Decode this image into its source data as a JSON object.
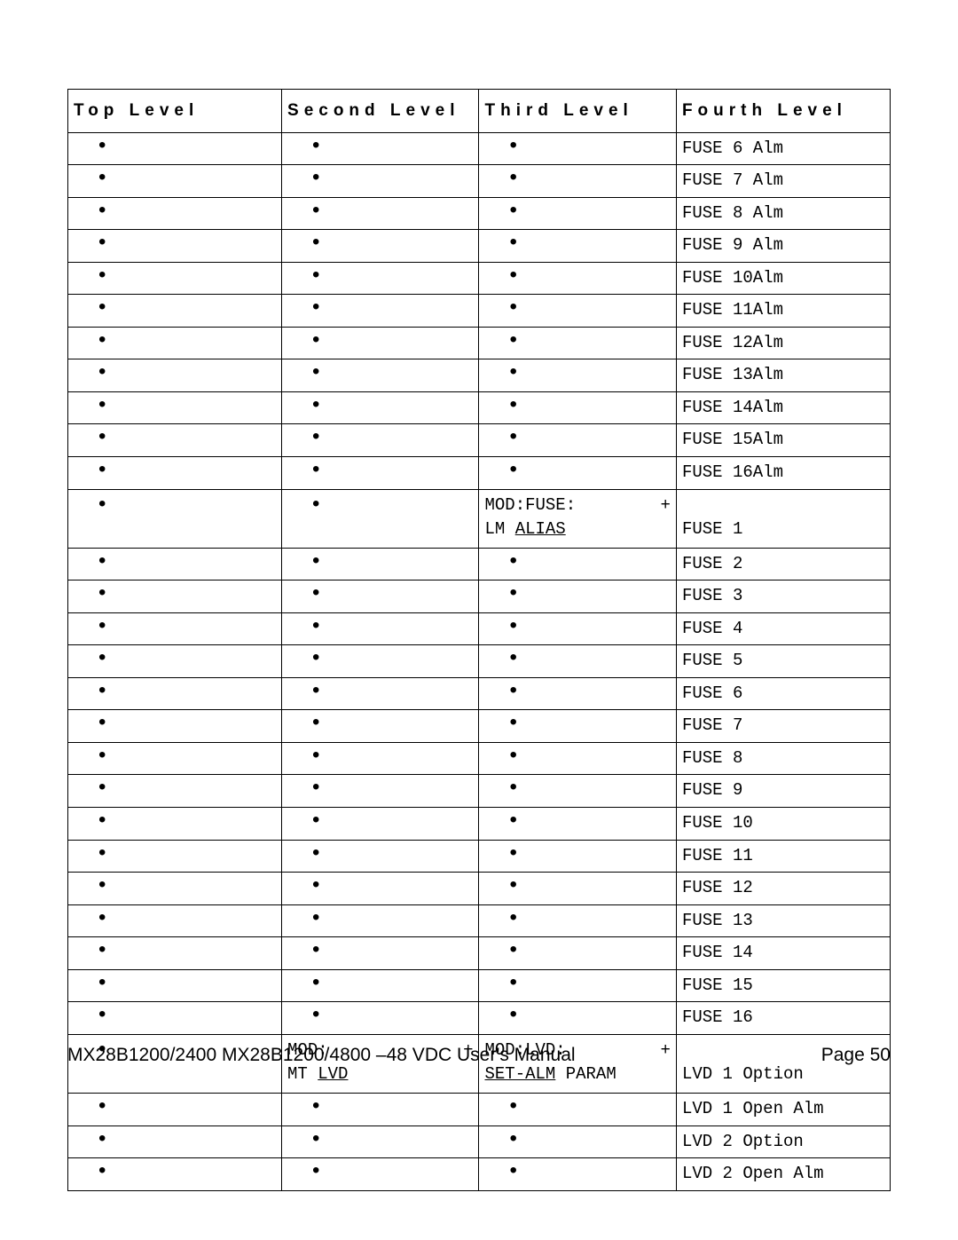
{
  "headers": {
    "c1": "Top Level",
    "c2": "Second Level",
    "c3": "Third Level",
    "c4": "Fourth Level"
  },
  "rows": [
    {
      "c1": "•",
      "c2": "•",
      "c3": "•",
      "c4": "FUSE 6 Alm"
    },
    {
      "c1": "•",
      "c2": "•",
      "c3": "•",
      "c4": "FUSE 7 Alm"
    },
    {
      "c1": "•",
      "c2": "•",
      "c3": "•",
      "c4": "FUSE 8 Alm"
    },
    {
      "c1": "•",
      "c2": "•",
      "c3": "•",
      "c4": "FUSE 9 Alm"
    },
    {
      "c1": "•",
      "c2": "•",
      "c3": "•",
      "c4": "FUSE 10Alm"
    },
    {
      "c1": "•",
      "c2": "•",
      "c3": "•",
      "c4": "FUSE 11Alm"
    },
    {
      "c1": "•",
      "c2": "•",
      "c3": "•",
      "c4": "FUSE 12Alm"
    },
    {
      "c1": "•",
      "c2": "•",
      "c3": "•",
      "c4": "FUSE 13Alm"
    },
    {
      "c1": "•",
      "c2": "•",
      "c3": "•",
      "c4": "FUSE 14Alm"
    },
    {
      "c1": "•",
      "c2": "•",
      "c3": "•",
      "c4": "FUSE 15Alm"
    },
    {
      "c1": "•",
      "c2": "•",
      "c3": "•",
      "c4": "FUSE 16Alm"
    },
    {
      "c1": "•",
      "c2": "•",
      "c3html": "<div class=\"mod-line\"><span>MOD:FUSE:</span><span>+</span></div><div>LM <span class=\"u\">ALIAS</span></div>",
      "c4html": "<br>FUSE 1",
      "tall": true
    },
    {
      "c1": "•",
      "c2": "•",
      "c3": "•",
      "c4": "FUSE 2"
    },
    {
      "c1": "•",
      "c2": "•",
      "c3": "•",
      "c4": "FUSE 3"
    },
    {
      "c1": "•",
      "c2": "•",
      "c3": "•",
      "c4": "FUSE 4"
    },
    {
      "c1": "•",
      "c2": "•",
      "c3": "•",
      "c4": "FUSE 5"
    },
    {
      "c1": "•",
      "c2": "•",
      "c3": "•",
      "c4": "FUSE 6"
    },
    {
      "c1": "•",
      "c2": "•",
      "c3": "•",
      "c4": "FUSE 7"
    },
    {
      "c1": "•",
      "c2": "•",
      "c3": "•",
      "c4": "FUSE 8"
    },
    {
      "c1": "•",
      "c2": "•",
      "c3": "•",
      "c4": "FUSE 9"
    },
    {
      "c1": "•",
      "c2": "•",
      "c3": "•",
      "c4": "FUSE 10"
    },
    {
      "c1": "•",
      "c2": "•",
      "c3": "•",
      "c4": "FUSE 11"
    },
    {
      "c1": "•",
      "c2": "•",
      "c3": "•",
      "c4": "FUSE 12"
    },
    {
      "c1": "•",
      "c2": "•",
      "c3": "•",
      "c4": "FUSE 13"
    },
    {
      "c1": "•",
      "c2": "•",
      "c3": "•",
      "c4": "FUSE 14"
    },
    {
      "c1": "•",
      "c2": "•",
      "c3": "•",
      "c4": "FUSE 15"
    },
    {
      "c1": "•",
      "c2": "•",
      "c3": "•",
      "c4": "FUSE 16"
    },
    {
      "c1": "•",
      "c2html": "<div class=\"mod-line\"><span>MOD:</span><span>+</span></div><div>MT <span class=\"u\">LVD</span></div>",
      "c3html": "<div class=\"mod-line\"><span>MOD:LVD:</span><span>+</span></div><div><span class=\"u\">SET-ALM</span> PARAM</div>",
      "c4html": "<br>LVD 1 Option",
      "tall": true
    },
    {
      "c1": "•",
      "c2": "•",
      "c3": "•",
      "c4": "LVD 1 Open Alm"
    },
    {
      "c1": "•",
      "c2": "•",
      "c3": "•",
      "c4": "LVD 2 Option"
    },
    {
      "c1": "•",
      "c2": "•",
      "c3": "•",
      "c4": "LVD 2 Open Alm"
    }
  ],
  "footer": {
    "left": "MX28B1200/2400 MX28B1200/4800 –48 VDC User's Manual",
    "right": "Page 50"
  }
}
